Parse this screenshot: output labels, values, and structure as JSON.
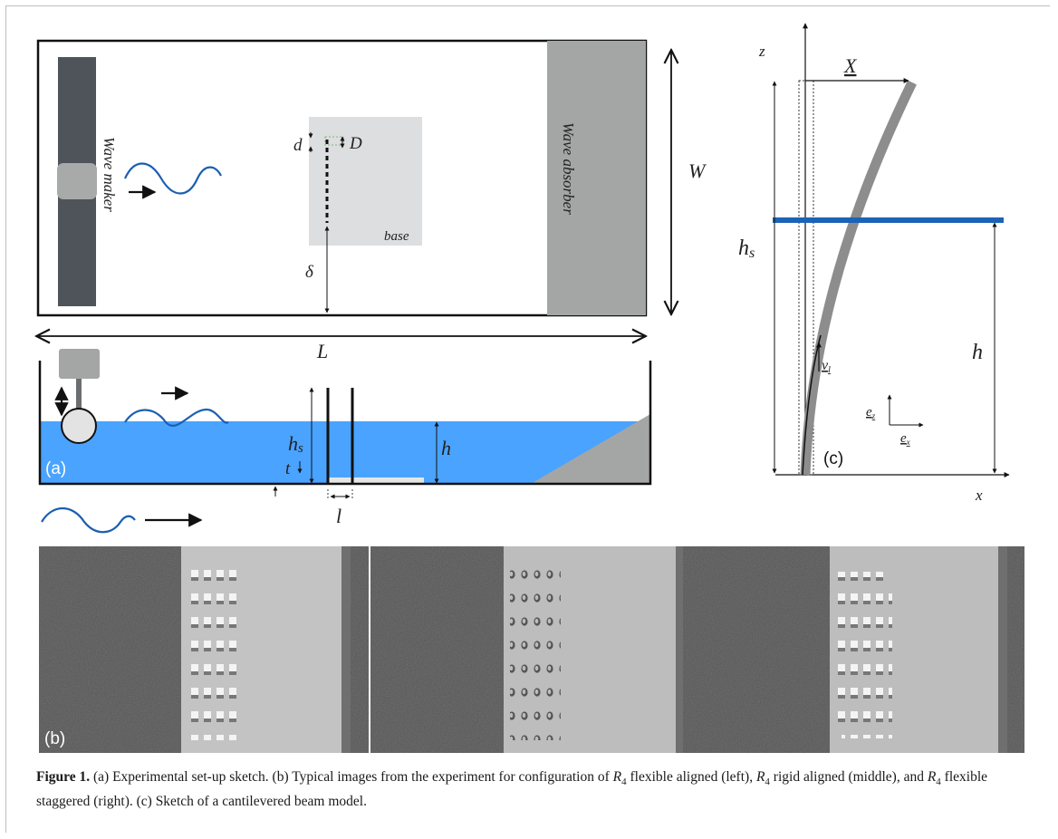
{
  "panel_a": {
    "top_view": {
      "wave_maker": "Wave maker",
      "wave_absorber": "Wave absorber",
      "base": "base",
      "d": "d",
      "D": "D",
      "delta": "δ",
      "W": "W",
      "L": "L"
    },
    "side_view": {
      "hs_main": "h",
      "hs_sub": "s",
      "h": "h",
      "t": "t",
      "l": "l",
      "tag": "(a)"
    }
  },
  "panel_b": {
    "tag": "(b)"
  },
  "panel_c": {
    "z": "z",
    "x": "x",
    "X": "X",
    "hs_main": "h",
    "hs_sub": "s",
    "h": "h",
    "v_main": "v",
    "v_sub": "l",
    "ez_main": "e",
    "ez_sub": "z",
    "ex_main": "e",
    "ex_sub": "x",
    "tag": "(c)"
  },
  "caption": {
    "label": "Figure 1.",
    "p1": "(a) Experimental set-up sketch. (b) Typical images from the experiment for configuration of",
    "r": "R",
    "sub": "4",
    "p2": "flexible aligned (left),",
    "p3": "rigid aligned (middle), and",
    "p4": "flexible staggered (right). (c) Sketch of a cantilevered beam model."
  },
  "colors": {
    "water": "#4aa3ff",
    "wave_line": "#1b5fb0",
    "maker_bar": "#4f535a",
    "absorber": "#a3a6a5",
    "base_gray": "#dcdedf",
    "beam": "#8d8d8d",
    "waterline_c": "#1c63b7"
  }
}
